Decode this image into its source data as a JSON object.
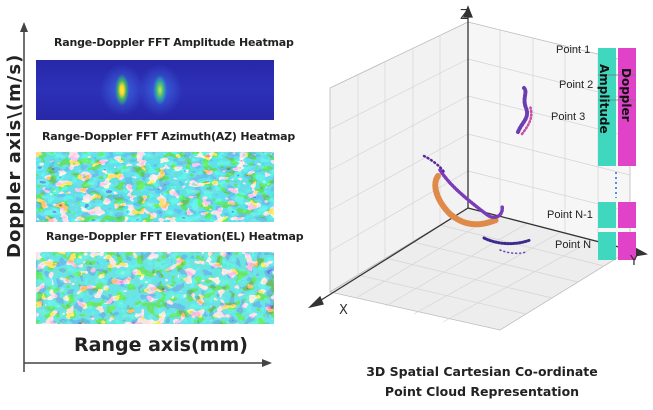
{
  "left_panel": {
    "y_axis_label": "Doppler axis\\(m/s)",
    "x_axis_label": "Range axis(mm)",
    "heatmaps": [
      {
        "title": "Range-Doppler FFT Amplitude Heatmap"
      },
      {
        "title": "Range-Doppler FFT Azimuth(AZ) Heatmap"
      },
      {
        "title": "Range-Doppler FFT Elevation(EL) Heatmap"
      }
    ]
  },
  "right_panel": {
    "axis_z": "Z",
    "axis_x": "X",
    "axis_y": "Y",
    "points": [
      "Point 1",
      "Point 2",
      "Point 3",
      "Point N-1",
      "Point N"
    ],
    "column_amplitude": "Amplitude",
    "column_doppler": "Doppler",
    "caption": "3D Spatial Cartesian Co-ordinate Point Cloud Representation",
    "colors": {
      "amplitude": "#3fd8bf",
      "doppler": "#e042c8"
    }
  }
}
